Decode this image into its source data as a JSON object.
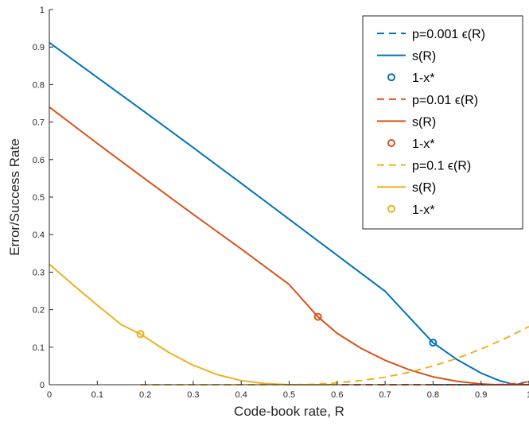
{
  "chart_data": {
    "type": "line",
    "title": "",
    "xlabel": "Code-book rate, R",
    "ylabel": "Error/Success Rate",
    "xlim": [
      0,
      1
    ],
    "ylim": [
      0,
      1
    ],
    "xticks": [
      "0",
      "0.1",
      "0.2",
      "0.3",
      "0.4",
      "0.5",
      "0.6",
      "0.7",
      "0.8",
      "0.9",
      "1"
    ],
    "yticks": [
      "0",
      "0.1",
      "0.2",
      "0.3",
      "0.4",
      "0.5",
      "0.6",
      "0.7",
      "0.8",
      "0.9",
      "1"
    ],
    "grid": false,
    "legend_position": "top-right",
    "colors": {
      "p0001": "#0072BD",
      "p001": "#D95319",
      "p01": "#EDB120"
    },
    "series": [
      {
        "name": "p=0.001 ε(R)",
        "group": "p0001",
        "style": "dashed",
        "x": [
          0.8,
          0.85,
          0.9,
          0.93,
          0.95,
          0.97,
          0.98,
          0.99,
          1.0
        ],
        "y": [
          0.0,
          0.0,
          0.0,
          0.0,
          0.0,
          0.0,
          0.002,
          0.004,
          0.008
        ]
      },
      {
        "name": "s(R)",
        "group": "p0001",
        "style": "solid",
        "x": [
          0,
          0.1,
          0.2,
          0.3,
          0.4,
          0.5,
          0.6,
          0.7,
          0.8,
          0.85,
          0.9,
          0.94,
          0.97,
          0.98,
          1.0
        ],
        "y": [
          0.912,
          0.819,
          0.726,
          0.632,
          0.537,
          0.441,
          0.345,
          0.249,
          0.112,
          0.067,
          0.031,
          0.01,
          0.0,
          0.0,
          0.0
        ]
      },
      {
        "name": "1-x*",
        "group": "p0001",
        "style": "marker",
        "x": [
          0.8
        ],
        "y": [
          0.112
        ]
      },
      {
        "name": "p=0.01 ε(R)",
        "group": "p001",
        "style": "dashed",
        "x": [
          0.56,
          0.7,
          0.8,
          0.85,
          0.9,
          0.93,
          0.95,
          0.97,
          0.99,
          1.0
        ],
        "y": [
          0.0,
          0.0,
          0.0,
          0.0,
          0.0,
          0.0,
          0.001,
          0.003,
          0.006,
          0.008
        ]
      },
      {
        "name": "s(R)",
        "group": "p001",
        "style": "solid",
        "x": [
          0,
          0.1,
          0.2,
          0.3,
          0.4,
          0.5,
          0.56,
          0.6,
          0.65,
          0.7,
          0.75,
          0.8,
          0.85,
          0.9,
          0.93,
          0.96,
          1.0
        ],
        "y": [
          0.74,
          0.643,
          0.548,
          0.454,
          0.362,
          0.267,
          0.181,
          0.137,
          0.097,
          0.065,
          0.04,
          0.021,
          0.009,
          0.002,
          0.0,
          0.0,
          0.0
        ]
      },
      {
        "name": "1-x*",
        "group": "p001",
        "style": "marker",
        "x": [
          0.56
        ],
        "y": [
          0.181
        ]
      },
      {
        "name": "p=0.1 ε(R)",
        "group": "p01",
        "style": "dashed",
        "x": [
          0.19,
          0.3,
          0.4,
          0.5,
          0.55,
          0.6,
          0.65,
          0.7,
          0.75,
          0.8,
          0.85,
          0.9,
          0.95,
          1.0
        ],
        "y": [
          0.0,
          0.0,
          0.0,
          0.0,
          0.001,
          0.005,
          0.011,
          0.02,
          0.033,
          0.05,
          0.07,
          0.095,
          0.123,
          0.155
        ]
      },
      {
        "name": "s(R)",
        "group": "p01",
        "style": "solid",
        "x": [
          0,
          0.05,
          0.1,
          0.15,
          0.19,
          0.25,
          0.3,
          0.35,
          0.4,
          0.45,
          0.5,
          0.53,
          0.56,
          0.6
        ],
        "y": [
          0.321,
          0.266,
          0.212,
          0.16,
          0.135,
          0.085,
          0.052,
          0.027,
          0.011,
          0.003,
          0.0,
          0.0,
          0.0,
          0.0
        ]
      },
      {
        "name": "1-x*",
        "group": "p01",
        "style": "marker",
        "x": [
          0.19
        ],
        "y": [
          0.135
        ]
      }
    ],
    "legend": [
      {
        "style": "dashed",
        "group": "p0001",
        "label": "p=0.001 ϵ(R)"
      },
      {
        "style": "solid",
        "group": "p0001",
        "label": "s(R)"
      },
      {
        "style": "marker",
        "group": "p0001",
        "label": "1-x*"
      },
      {
        "style": "dashed",
        "group": "p001",
        "label": "p=0.01 ϵ(R)"
      },
      {
        "style": "solid",
        "group": "p001",
        "label": "s(R)"
      },
      {
        "style": "marker",
        "group": "p001",
        "label": "1-x*"
      },
      {
        "style": "dashed",
        "group": "p01",
        "label": "p=0.1 ϵ(R)"
      },
      {
        "style": "solid",
        "group": "p01",
        "label": "s(R)"
      },
      {
        "style": "marker",
        "group": "p01",
        "label": "1-x*"
      }
    ]
  }
}
